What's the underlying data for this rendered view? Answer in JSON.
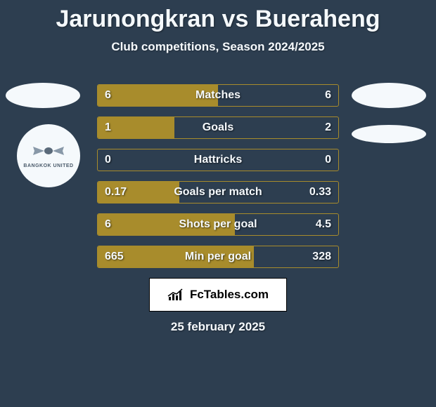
{
  "title": "Jarunongkran vs Bueraheng",
  "subtitle": "Club competitions, Season 2024/2025",
  "badge_text": "BANGKOK UNITED",
  "stats": [
    {
      "label": "Matches",
      "left_val": "6",
      "right_val": "6",
      "left_width": 50,
      "right_width": 0
    },
    {
      "label": "Goals",
      "left_val": "1",
      "right_val": "2",
      "left_width": 32,
      "right_width": 0
    },
    {
      "label": "Hattricks",
      "left_val": "0",
      "right_val": "0",
      "left_width": 0,
      "right_width": 0
    },
    {
      "label": "Goals per match",
      "left_val": "0.17",
      "right_val": "0.33",
      "left_width": 34,
      "right_width": 0
    },
    {
      "label": "Shots per goal",
      "left_val": "6",
      "right_val": "4.5",
      "left_width": 57,
      "right_width": 0
    },
    {
      "label": "Min per goal",
      "left_val": "665",
      "right_val": "328",
      "left_width": 65,
      "right_width": 0
    }
  ],
  "brand": "FcTables.com",
  "date": "25 february 2025",
  "colors": {
    "background": "#2d3e50",
    "text": "#f5f9fc",
    "bar_left": "#a88c2c",
    "bar_right": "#3a6a8f",
    "badge_bg": "#f5f9fc",
    "brand_bg": "#ffffff"
  }
}
